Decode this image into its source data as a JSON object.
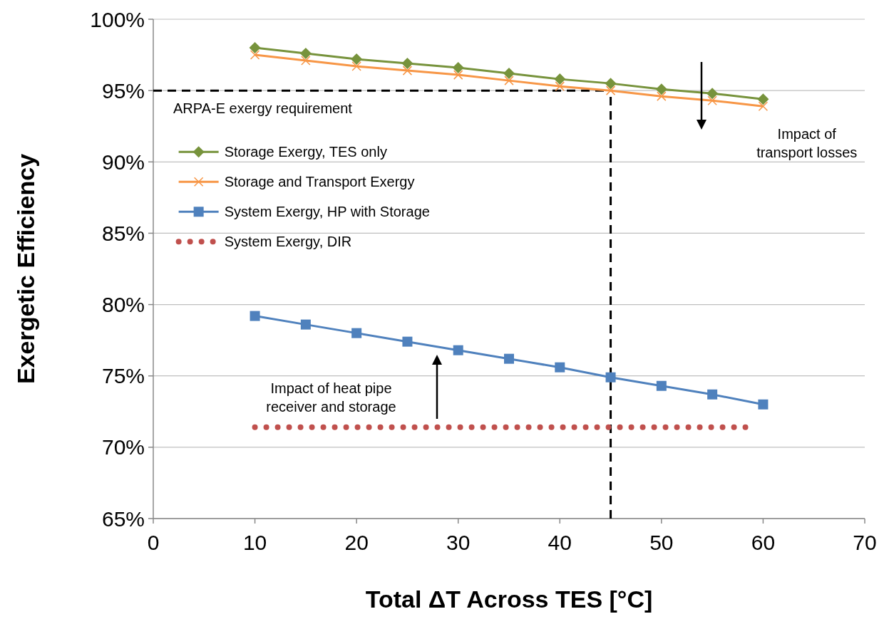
{
  "chart_data": {
    "type": "line",
    "xlabel": "Total ΔT Across TES [°C]",
    "ylabel": "Exergetic Efficiency",
    "xlim": [
      0,
      70
    ],
    "xticks": [
      0,
      10,
      20,
      30,
      40,
      50,
      60,
      70
    ],
    "ylim": [
      65,
      100
    ],
    "yticks": [
      {
        "value": 65,
        "label": "65%"
      },
      {
        "value": 70,
        "label": "70%"
      },
      {
        "value": 75,
        "label": "75%"
      },
      {
        "value": 80,
        "label": "80%"
      },
      {
        "value": 85,
        "label": "85%"
      },
      {
        "value": 90,
        "label": "90%"
      },
      {
        "value": 95,
        "label": "95%"
      },
      {
        "value": 100,
        "label": "100%"
      }
    ],
    "grid": "y",
    "legend": "left",
    "x": [
      10,
      15,
      20,
      25,
      30,
      35,
      40,
      45,
      50,
      55,
      60
    ],
    "series": [
      {
        "name": "Storage Exergy, TES only",
        "color": "#77933c",
        "marker": "diamond",
        "values": [
          98.0,
          97.6,
          97.2,
          96.9,
          96.6,
          96.2,
          95.8,
          95.5,
          95.1,
          94.8,
          94.4
        ]
      },
      {
        "name": "Storage and Transport Exergy",
        "color": "#f79646",
        "marker": "cross",
        "values": [
          97.5,
          97.1,
          96.7,
          96.4,
          96.1,
          95.7,
          95.3,
          95.0,
          94.6,
          94.3,
          93.9
        ]
      },
      {
        "name": "System Exergy, HP with Storage",
        "color": "#4f81bd",
        "marker": "square",
        "values": [
          79.2,
          78.6,
          78.0,
          77.4,
          76.8,
          76.2,
          75.6,
          74.9,
          74.3,
          73.7,
          73.0
        ]
      },
      {
        "name": "System Exergy, DIR",
        "color": "#c0504d",
        "marker": "none",
        "line_style": "dotted",
        "x": [
          10,
          58.5
        ],
        "values": [
          71.4,
          71.4
        ]
      }
    ],
    "ref_lines": [
      {
        "axis": "y",
        "value": 95,
        "label": "ARPA-E exergy requirement",
        "color": "#000000",
        "line_style": "dashed"
      },
      {
        "axis": "x",
        "value": 45,
        "color": "#000000",
        "line_style": "dashed"
      }
    ],
    "annotations": [
      "Impact of\ntransport losses",
      "Impact of heat pipe\nreceiver and storage"
    ]
  }
}
